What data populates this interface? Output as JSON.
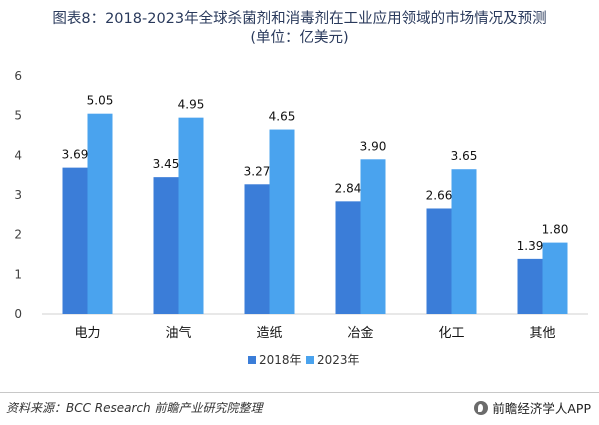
{
  "title_line1": "图表8：2018-2023年全球杀菌剂和消毒剂在工业应用领域的市场情况及预测",
  "title_line2": "(单位：亿美元)",
  "footer": {
    "source": "资料来源：BCC Research 前瞻产业研究院整理",
    "brand": "前瞻经济学人APP"
  },
  "colors": {
    "series_2018": "#3b7dd8",
    "series_2023": "#4aa3ee",
    "background": "#ffffff"
  },
  "chart_data": {
    "type": "bar",
    "title": "图表8：2018-2023年全球杀菌剂和消毒剂在工业应用领域的市场情况及预测",
    "subtitle": "(单位：亿美元)",
    "categories": [
      "电力",
      "油气",
      "造纸",
      "冶金",
      "化工",
      "其他"
    ],
    "series": [
      {
        "name": "2018年",
        "values": [
          3.69,
          3.45,
          3.27,
          2.84,
          2.66,
          1.39
        ],
        "labels": [
          "3.69",
          "3.45",
          "3.27",
          "2.84",
          "2.66",
          "1.39"
        ]
      },
      {
        "name": "2023年",
        "values": [
          5.05,
          4.95,
          4.65,
          3.9,
          3.65,
          1.8
        ],
        "labels": [
          "5.05",
          "4.95",
          "4.65",
          "3.90",
          "3.65",
          "1.80"
        ]
      }
    ],
    "yticks": [
      "0",
      "1",
      "2",
      "3",
      "4",
      "5",
      "6"
    ],
    "ylim": [
      0,
      6
    ],
    "grid": false,
    "legend": "bottom-center"
  }
}
